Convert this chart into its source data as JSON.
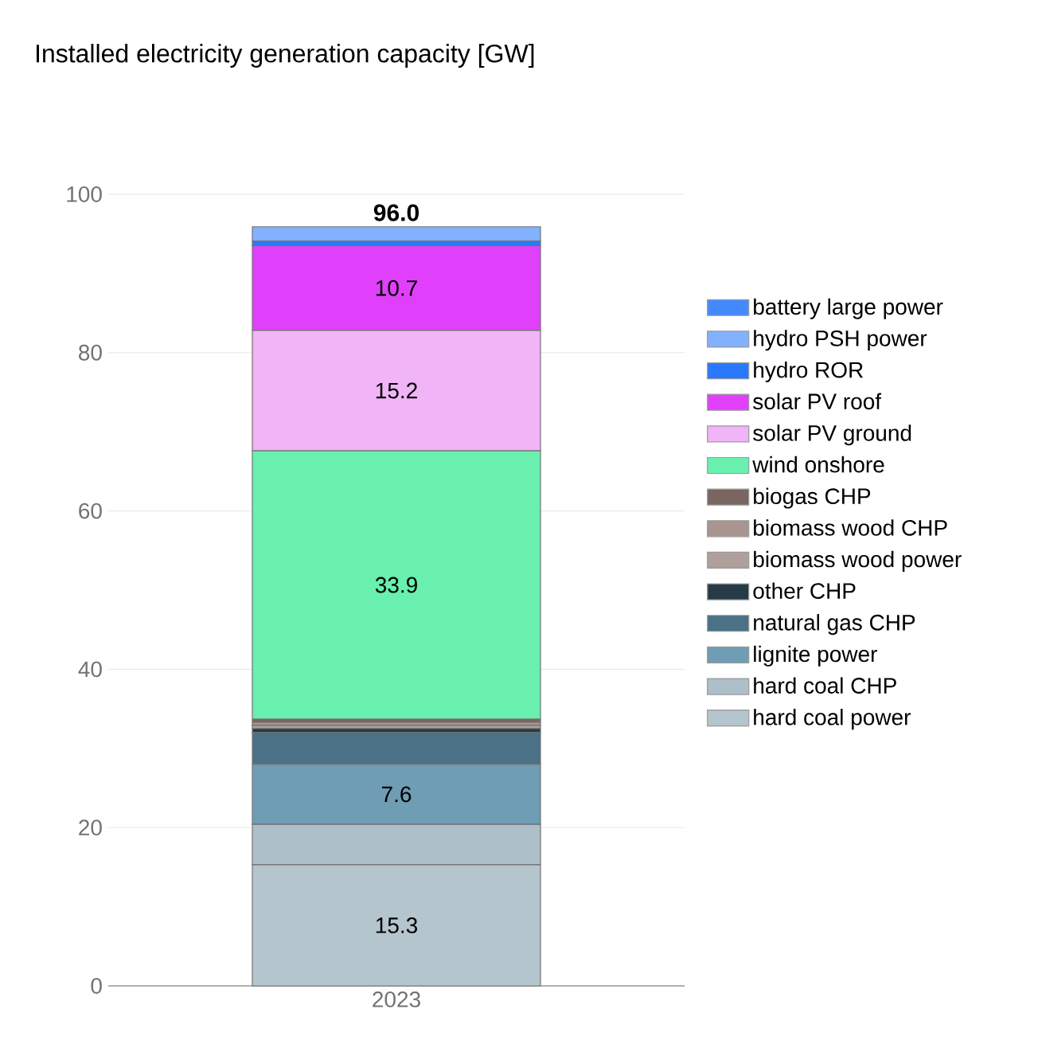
{
  "chart_data": {
    "type": "bar",
    "title": "Installed electricity generation capacity [GW]",
    "categories": [
      "2023"
    ],
    "stacked": true,
    "ylim": [
      0,
      100
    ],
    "yticks": [
      0,
      20,
      40,
      60,
      80,
      100
    ],
    "grid": "y",
    "legend": "right",
    "totals": [
      "96.0"
    ],
    "series": [
      {
        "name": "hard coal power",
        "color": "#b5c5ce",
        "values": [
          15.3
        ],
        "value_labels": [
          "15.3"
        ]
      },
      {
        "name": "hard coal CHP",
        "color": "#adbfc9",
        "values": [
          5.1
        ]
      },
      {
        "name": "lignite power",
        "color": "#6e9db4",
        "values": [
          7.6
        ],
        "value_labels": [
          "7.6"
        ]
      },
      {
        "name": "natural gas CHP",
        "color": "#4a7185",
        "values": [
          4.0
        ]
      },
      {
        "name": "other CHP",
        "color": "#263a47",
        "values": [
          0.5
        ]
      },
      {
        "name": "biomass wood power",
        "color": "#b0a09c",
        "values": [
          0.4
        ]
      },
      {
        "name": "biomass wood CHP",
        "color": "#a8958f",
        "values": [
          0.4
        ]
      },
      {
        "name": "biogas CHP",
        "color": "#7a6560",
        "values": [
          0.4
        ]
      },
      {
        "name": "wind onshore",
        "color": "#69f0ae",
        "values": [
          33.9
        ],
        "value_labels": [
          "33.9"
        ]
      },
      {
        "name": "solar PV ground",
        "color": "#f0b4f7",
        "values": [
          15.2
        ],
        "value_labels": [
          "15.2"
        ]
      },
      {
        "name": "solar PV roof",
        "color": "#e040fb",
        "values": [
          10.7
        ],
        "value_labels": [
          "10.7"
        ]
      },
      {
        "name": "hydro ROR",
        "color": "#2979ff",
        "values": [
          0.6
        ]
      },
      {
        "name": "hydro PSH power",
        "color": "#82b1ff",
        "values": [
          1.8
        ]
      },
      {
        "name": "battery large power",
        "color": "#448aff",
        "values": [
          null
        ]
      }
    ]
  }
}
